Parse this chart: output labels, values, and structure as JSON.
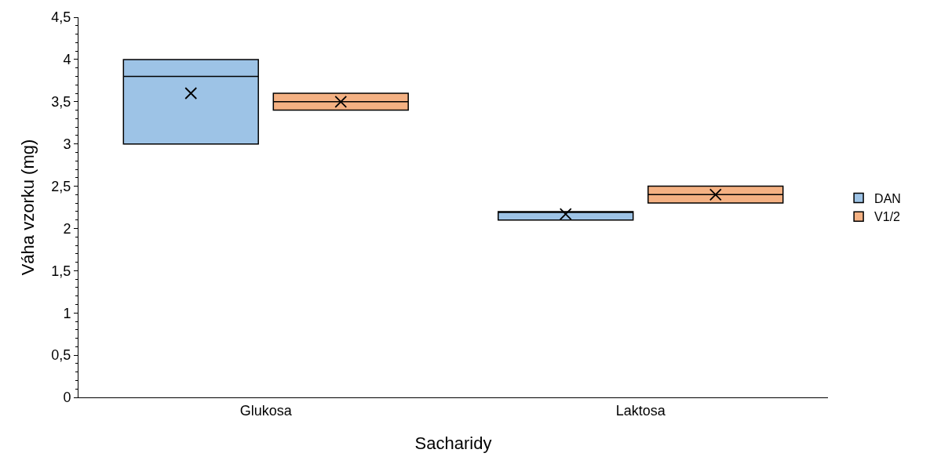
{
  "chart_data": {
    "type": "box",
    "xlabel": "Sacharidy",
    "ylabel": "Váha vzorku (mg)",
    "categories": [
      "Glukosa",
      "Laktosa"
    ],
    "series": [
      {
        "name": "DAN",
        "color": "#9dc3e6",
        "boxes": [
          {
            "q1": 3,
            "median": 3.8,
            "q3": 4,
            "mean": 3.6
          },
          {
            "q1": 2.1,
            "median": 2.2,
            "q3": 2.2,
            "mean": 2.17
          }
        ]
      },
      {
        "name": "V1/2",
        "color": "#f4b183",
        "boxes": [
          {
            "q1": 3.4,
            "median": 3.5,
            "q3": 3.6,
            "mean": 3.5
          },
          {
            "q1": 2.3,
            "median": 2.4,
            "q3": 2.5,
            "mean": 2.4
          }
        ]
      }
    ],
    "ylim": [
      0,
      4.5
    ],
    "yticks": [
      0,
      {
        "value": 0.5,
        "label": "0,5"
      },
      1,
      {
        "value": 1.5,
        "label": "1,5"
      },
      2,
      {
        "value": 2.5,
        "label": "2,5"
      },
      3,
      {
        "value": 3.5,
        "label": "3,5"
      },
      4,
      {
        "value": 4.5,
        "label": "4,5"
      }
    ],
    "legend": "right"
  }
}
